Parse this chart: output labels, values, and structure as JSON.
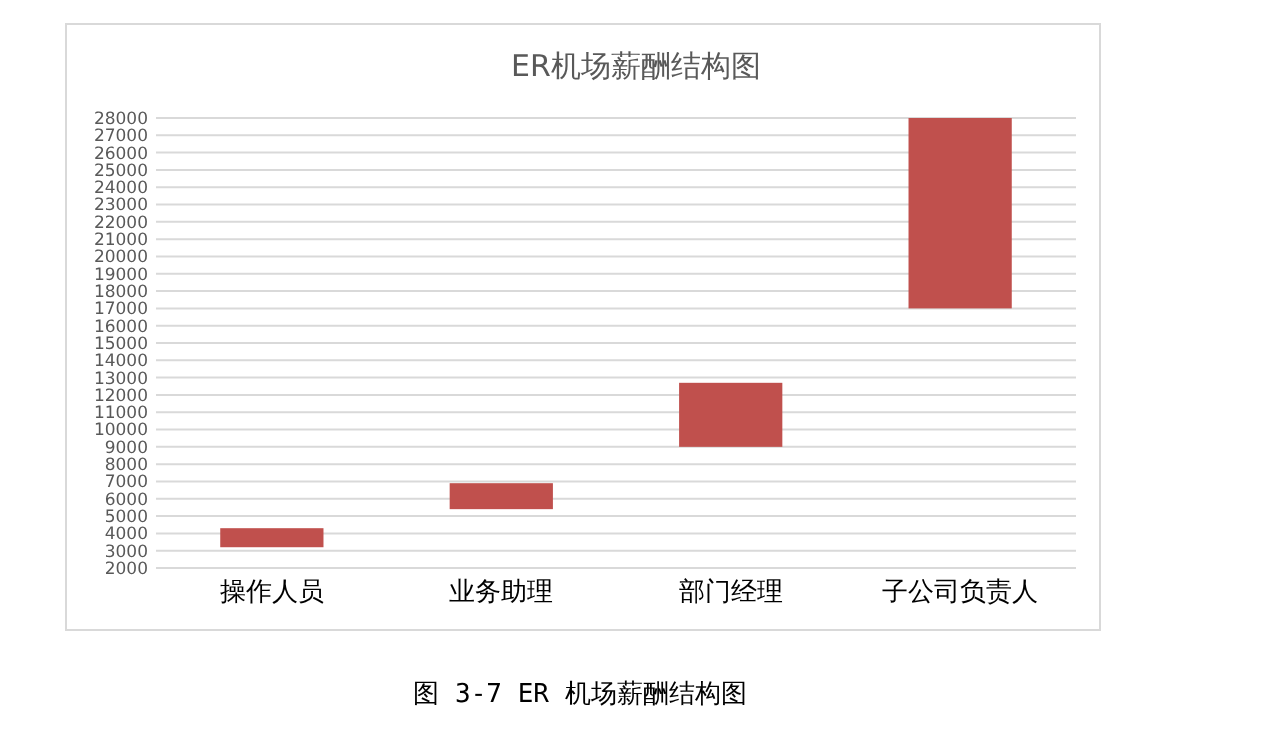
{
  "chart_data": {
    "type": "bar",
    "title": "ER机场薪酬结构图",
    "categories": [
      "操作人员",
      "业务助理",
      "部门经理",
      "子公司负责人"
    ],
    "values": [
      1100,
      1500,
      3700,
      11000
    ],
    "base": [
      3200,
      5400,
      9000,
      17000
    ],
    "color": "#c0504d",
    "ylim": [
      2000,
      28000
    ],
    "yticks": [
      2000,
      3000,
      4000,
      5000,
      6000,
      7000,
      8000,
      9000,
      10000,
      11000,
      12000,
      13000,
      14000,
      15000,
      16000,
      17000,
      18000,
      19000,
      20000,
      21000,
      22000,
      23000,
      24000,
      25000,
      26000,
      27000,
      28000
    ],
    "grid": "y",
    "annotations": [
      "图 3-7 ER 机场薪酬结构图"
    ]
  }
}
